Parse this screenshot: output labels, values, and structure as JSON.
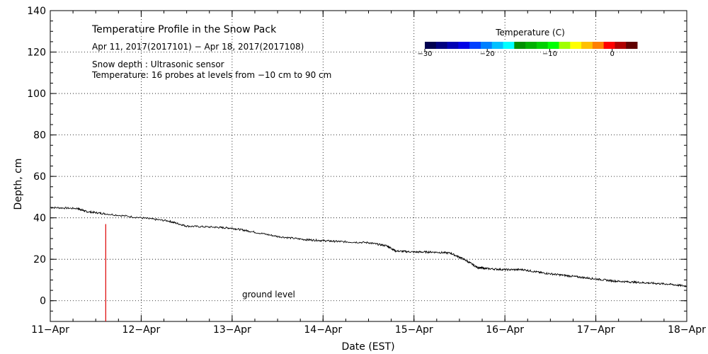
{
  "chart_data": {
    "type": "line",
    "title": "Temperature Profile in the Snow Pack",
    "subtitle": "Apr 11, 2017(2017101) − Apr 18, 2017(2017108)",
    "annotations": [
      "Snow depth : Ultrasonic sensor",
      "Temperature: 16 probes at levels from −10 cm to 90 cm"
    ],
    "ground_label": "ground level",
    "xlabel": "Date (EST)",
    "ylabel": "Depth, cm",
    "x_ticks": [
      "11−Apr",
      "12−Apr",
      "13−Apr",
      "14−Apr",
      "15−Apr",
      "16−Apr",
      "17−Apr",
      "18−Apr"
    ],
    "xlim": [
      0,
      7
    ],
    "ylim": [
      -10,
      140
    ],
    "y_ticks": [
      0,
      20,
      40,
      60,
      80,
      100,
      120,
      140
    ],
    "grid": true,
    "series": [
      {
        "name": "Snow depth",
        "x": [
          0,
          0.3,
          0.4,
          0.6,
          1.0,
          1.3,
          1.5,
          1.8,
          2.0,
          2.2,
          2.5,
          2.8,
          3.0,
          3.2,
          3.5,
          3.7,
          3.8,
          4.0,
          4.2,
          4.4,
          4.55,
          4.7,
          4.8,
          5.0,
          5.2,
          5.4,
          5.6,
          5.8,
          6.0,
          6.2,
          6.4,
          6.6,
          6.8,
          7.0
        ],
        "y": [
          45,
          44.5,
          43,
          42,
          40,
          38.5,
          36,
          35.5,
          35,
          33.5,
          31,
          29.5,
          29,
          28.5,
          28,
          26.5,
          24,
          23.5,
          23.5,
          23,
          20,
          16,
          15.5,
          15,
          15,
          13.5,
          12.5,
          11.5,
          10.5,
          9.5,
          9,
          8.5,
          8,
          7
        ]
      }
    ],
    "marker_line": {
      "x": 0.61,
      "y_from": -10,
      "y_to": 37,
      "color": "#dd0000"
    },
    "colorbar": {
      "title": "Temperature (C)",
      "ticks": [
        "−30",
        "−20",
        "−10",
        "0"
      ],
      "tick_values": [
        -30,
        -20,
        -10,
        0
      ],
      "range": [
        -30,
        4
      ],
      "colors": [
        "#000050",
        "#000080",
        "#0000b4",
        "#0000e6",
        "#0040ff",
        "#0080ff",
        "#00c0ff",
        "#00ffff",
        "#009000",
        "#00b000",
        "#00d000",
        "#00ff00",
        "#a0ff00",
        "#ffff00",
        "#ffc000",
        "#ff8000",
        "#ff0000",
        "#b00000",
        "#600000"
      ]
    }
  }
}
